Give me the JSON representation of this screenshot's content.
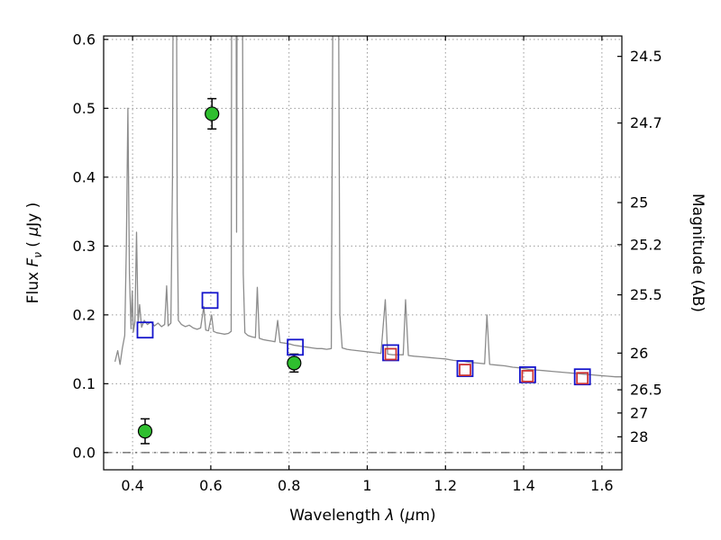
{
  "figure": {
    "background": "#ffffff"
  },
  "chart_data": {
    "type": "line+scatter",
    "title": "",
    "xlabel": "Wavelength λ (μm)",
    "xlabel_parts": [
      {
        "t": "Wavelength  ",
        "i": false
      },
      {
        "t": "λ",
        "i": true
      },
      {
        "t": " (",
        "i": false
      },
      {
        "t": "μ",
        "i": true
      },
      {
        "t": "m)",
        "i": false
      }
    ],
    "ylabel_left": "Flux Fν ( μJy )",
    "ylabel_left_parts": [
      {
        "t": "Flux  ",
        "i": false
      },
      {
        "t": "F",
        "i": true
      },
      {
        "t": "ν",
        "i": true,
        "sub": true
      },
      {
        "t": " ( ",
        "i": false
      },
      {
        "t": "μ",
        "i": true
      },
      {
        "t": "Jy )",
        "i": false
      }
    ],
    "ylabel_right": "Magnitude (AB)",
    "xlim": [
      0.326,
      1.651
    ],
    "ylim": [
      -0.025,
      0.605
    ],
    "x_ticks": {
      "values": [
        0.4,
        0.6,
        0.8,
        1.0,
        1.2,
        1.4,
        1.6
      ],
      "labels": [
        "0.4",
        "0.6",
        "0.8",
        "1",
        "1.2",
        "1.4",
        "1.6"
      ]
    },
    "y_ticks_left": {
      "values": [
        0.0,
        0.1,
        0.2,
        0.3,
        0.4,
        0.5,
        0.6
      ],
      "labels": [
        "0.0",
        "0.1",
        "0.2",
        "0.3",
        "0.4",
        "0.5",
        "0.6"
      ]
    },
    "y_ticks_right": [
      {
        "label": "24.5",
        "flux": 0.5754
      },
      {
        "label": "24.7",
        "flux": 0.4786
      },
      {
        "label": "25",
        "flux": 0.3631
      },
      {
        "label": "25.2",
        "flux": 0.302
      },
      {
        "label": "25.5",
        "flux": 0.2291
      },
      {
        "label": "26",
        "flux": 0.1445
      },
      {
        "label": "26.5",
        "flux": 0.0912
      },
      {
        "label": "27",
        "flux": 0.0575
      },
      {
        "label": "28",
        "flux": 0.0229
      }
    ],
    "grid": {
      "show": true,
      "line_style": "dotted",
      "color": "#9a9a9a"
    },
    "zero_line": {
      "y": 0.0,
      "line_style": "dashdot",
      "color": "#3a3a3a"
    },
    "series": [
      {
        "name": "model-spectrum",
        "type": "line",
        "color": "#8c8c8c",
        "width": 1.3,
        "points": [
          [
            0.355,
            0.132
          ],
          [
            0.362,
            0.148
          ],
          [
            0.368,
            0.128
          ],
          [
            0.374,
            0.152
          ],
          [
            0.38,
            0.17
          ],
          [
            0.384,
            0.3
          ],
          [
            0.388,
            0.5
          ],
          [
            0.392,
            0.26
          ],
          [
            0.396,
            0.18
          ],
          [
            0.399,
            0.235
          ],
          [
            0.402,
            0.175
          ],
          [
            0.406,
            0.19
          ],
          [
            0.41,
            0.32
          ],
          [
            0.414,
            0.188
          ],
          [
            0.418,
            0.215
          ],
          [
            0.423,
            0.182
          ],
          [
            0.43,
            0.192
          ],
          [
            0.438,
            0.186
          ],
          [
            0.447,
            0.19
          ],
          [
            0.456,
            0.184
          ],
          [
            0.465,
            0.188
          ],
          [
            0.474,
            0.183
          ],
          [
            0.482,
            0.186
          ],
          [
            0.487,
            0.242
          ],
          [
            0.491,
            0.184
          ],
          [
            0.498,
            0.188
          ],
          [
            0.502,
            0.4
          ],
          [
            0.505,
            0.9
          ],
          [
            0.511,
            0.9
          ],
          [
            0.514,
            0.35
          ],
          [
            0.517,
            0.192
          ],
          [
            0.525,
            0.186
          ],
          [
            0.535,
            0.183
          ],
          [
            0.545,
            0.185
          ],
          [
            0.555,
            0.181
          ],
          [
            0.565,
            0.179
          ],
          [
            0.574,
            0.181
          ],
          [
            0.582,
            0.212
          ],
          [
            0.587,
            0.178
          ],
          [
            0.594,
            0.177
          ],
          [
            0.602,
            0.2
          ],
          [
            0.607,
            0.176
          ],
          [
            0.615,
            0.174
          ],
          [
            0.625,
            0.173
          ],
          [
            0.635,
            0.172
          ],
          [
            0.645,
            0.173
          ],
          [
            0.652,
            0.176
          ],
          [
            0.654,
            0.9
          ],
          [
            0.664,
            0.9
          ],
          [
            0.666,
            0.32
          ],
          [
            0.668,
            0.9
          ],
          [
            0.68,
            0.9
          ],
          [
            0.683,
            0.26
          ],
          [
            0.687,
            0.174
          ],
          [
            0.695,
            0.17
          ],
          [
            0.705,
            0.168
          ],
          [
            0.714,
            0.167
          ],
          [
            0.719,
            0.24
          ],
          [
            0.724,
            0.166
          ],
          [
            0.734,
            0.164
          ],
          [
            0.744,
            0.163
          ],
          [
            0.754,
            0.162
          ],
          [
            0.764,
            0.161
          ],
          [
            0.771,
            0.192
          ],
          [
            0.777,
            0.16
          ],
          [
            0.788,
            0.159
          ],
          [
            0.8,
            0.158
          ],
          [
            0.812,
            0.156
          ],
          [
            0.824,
            0.155
          ],
          [
            0.836,
            0.154
          ],
          [
            0.848,
            0.153
          ],
          [
            0.86,
            0.152
          ],
          [
            0.872,
            0.151
          ],
          [
            0.884,
            0.151
          ],
          [
            0.896,
            0.15
          ],
          [
            0.908,
            0.151
          ],
          [
            0.914,
            0.9
          ],
          [
            0.925,
            0.9
          ],
          [
            0.93,
            0.2
          ],
          [
            0.936,
            0.152
          ],
          [
            0.948,
            0.15
          ],
          [
            0.96,
            0.149
          ],
          [
            0.975,
            0.148
          ],
          [
            0.99,
            0.147
          ],
          [
            1.005,
            0.146
          ],
          [
            1.02,
            0.145
          ],
          [
            1.035,
            0.144
          ],
          [
            1.046,
            0.222
          ],
          [
            1.052,
            0.143
          ],
          [
            1.065,
            0.142
          ],
          [
            1.08,
            0.142
          ],
          [
            1.092,
            0.142
          ],
          [
            1.098,
            0.222
          ],
          [
            1.105,
            0.141
          ],
          [
            1.12,
            0.14
          ],
          [
            1.14,
            0.139
          ],
          [
            1.16,
            0.138
          ],
          [
            1.18,
            0.137
          ],
          [
            1.2,
            0.136
          ],
          [
            1.22,
            0.134
          ],
          [
            1.24,
            0.133
          ],
          [
            1.262,
            0.131
          ],
          [
            1.282,
            0.13
          ],
          [
            1.3,
            0.129
          ],
          [
            1.306,
            0.2
          ],
          [
            1.313,
            0.128
          ],
          [
            1.332,
            0.127
          ],
          [
            1.352,
            0.126
          ],
          [
            1.372,
            0.124
          ],
          [
            1.392,
            0.123
          ],
          [
            1.412,
            0.121
          ],
          [
            1.432,
            0.12
          ],
          [
            1.452,
            0.119
          ],
          [
            1.472,
            0.118
          ],
          [
            1.492,
            0.117
          ],
          [
            1.512,
            0.116
          ],
          [
            1.532,
            0.115
          ],
          [
            1.552,
            0.114
          ],
          [
            1.572,
            0.113
          ],
          [
            1.592,
            0.112
          ],
          [
            1.612,
            0.111
          ],
          [
            1.635,
            0.11
          ],
          [
            1.65,
            0.11
          ]
        ]
      },
      {
        "name": "observed-photometry-green-circles",
        "type": "scatter",
        "marker": "circle",
        "fill": "#2fbf2f",
        "edge": "#000000",
        "size": 15,
        "error_color": "#000000",
        "points": [
          {
            "x": 0.432,
            "y": 0.031,
            "yerr": 0.018
          },
          {
            "x": 0.603,
            "y": 0.492,
            "yerr": 0.022
          },
          {
            "x": 0.813,
            "y": 0.13,
            "yerr": 0.013
          }
        ]
      },
      {
        "name": "model-photometry-blue-squares",
        "type": "scatter",
        "marker": "square-open",
        "edge": "#1515cc",
        "size": 17,
        "points": [
          {
            "x": 0.432,
            "y": 0.178
          },
          {
            "x": 0.598,
            "y": 0.221
          },
          {
            "x": 0.816,
            "y": 0.153
          },
          {
            "x": 1.06,
            "y": 0.145
          },
          {
            "x": 1.25,
            "y": 0.122
          },
          {
            "x": 1.41,
            "y": 0.113
          },
          {
            "x": 1.55,
            "y": 0.11
          }
        ]
      },
      {
        "name": "model-photometry-red-squares",
        "type": "scatter",
        "marker": "square-open",
        "edge": "#cc3333",
        "size": 12,
        "points": [
          {
            "x": 1.06,
            "y": 0.143
          },
          {
            "x": 1.25,
            "y": 0.12
          },
          {
            "x": 1.41,
            "y": 0.111
          },
          {
            "x": 1.55,
            "y": 0.108
          }
        ]
      }
    ]
  }
}
